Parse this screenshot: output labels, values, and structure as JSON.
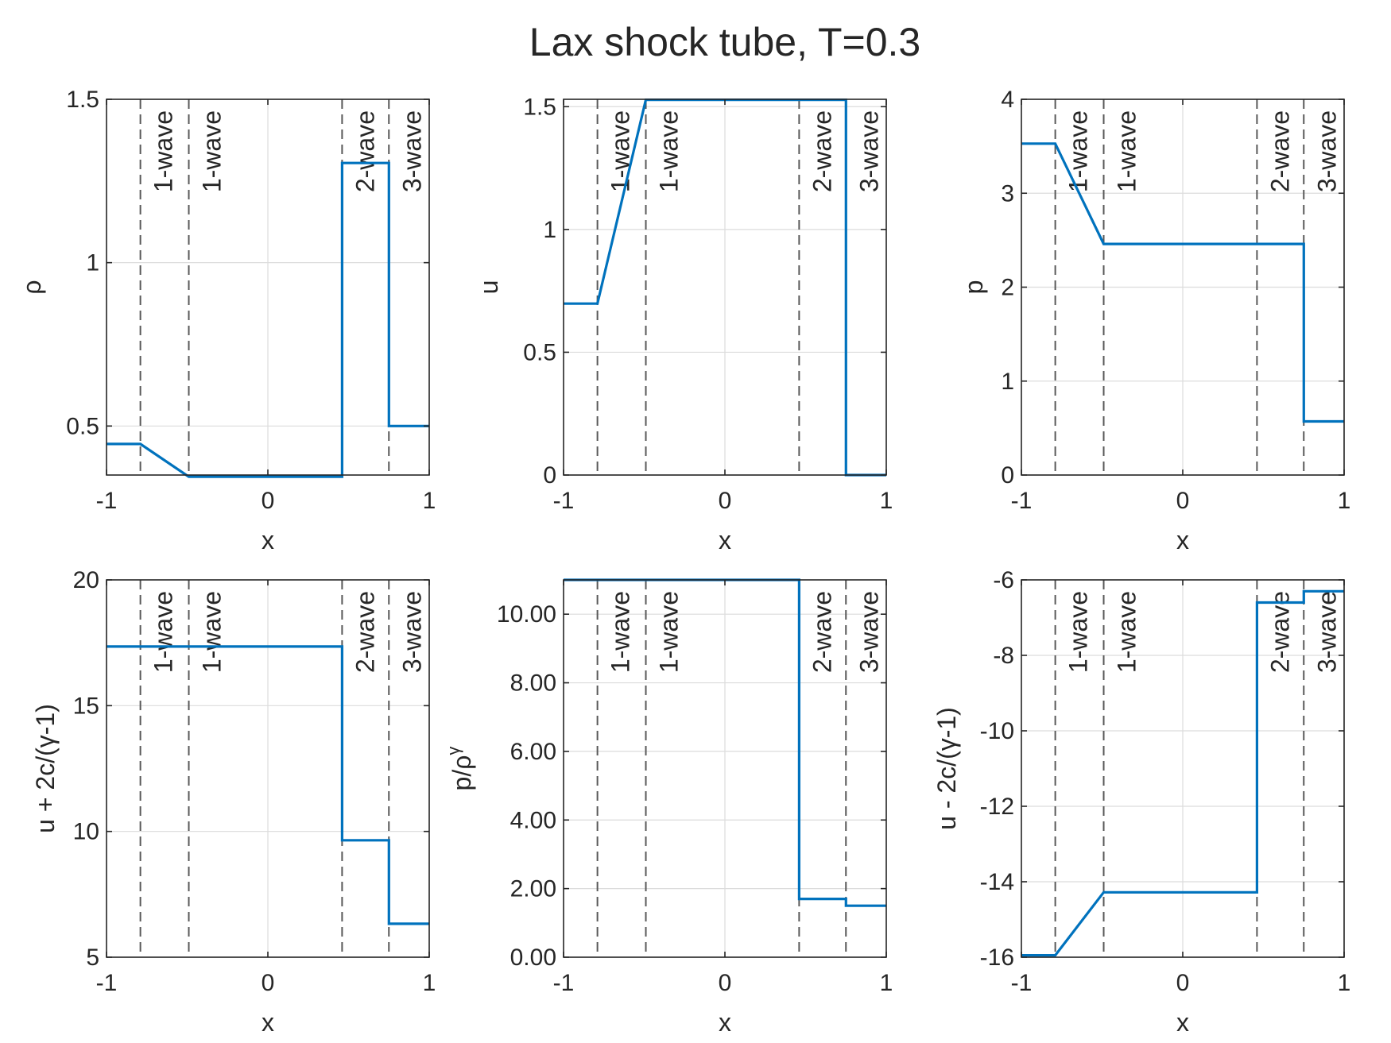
{
  "figure": {
    "title": "Lax shock tube, T=0.3"
  },
  "colors": {
    "line": "#0072BD",
    "wave_marker": "#595959",
    "grid": "#dcdcdc",
    "axes": "#262626"
  },
  "wave_positions": [
    -0.79,
    -0.49,
    0.46,
    0.75
  ],
  "wave_labels": [
    "1-wave",
    "1-wave",
    "2-wave",
    "3-wave"
  ],
  "chart_data": [
    {
      "type": "line",
      "ylabel": "ρ",
      "xlabel": "x",
      "xlim": [
        -1,
        1
      ],
      "ylim": [
        0.35,
        1.5
      ],
      "xticks": [
        -1,
        0,
        1
      ],
      "xtick_labels": [
        "-1",
        "0",
        "1"
      ],
      "yticks": [
        0.5,
        1,
        1.5
      ],
      "ytick_labels": [
        "0.5",
        "1",
        "1.5"
      ],
      "grid": true,
      "series": [
        {
          "x": [
            -1,
            -0.79,
            -0.49,
            0.46,
            0.46,
            0.75,
            0.75,
            1
          ],
          "y": [
            0.445,
            0.445,
            0.345,
            0.345,
            1.305,
            1.305,
            0.5,
            0.5
          ]
        }
      ]
    },
    {
      "type": "line",
      "ylabel": "u",
      "xlabel": "x",
      "xlim": [
        -1,
        1
      ],
      "ylim": [
        0,
        1.53
      ],
      "xticks": [
        -1,
        0,
        1
      ],
      "xtick_labels": [
        "-1",
        "0",
        "1"
      ],
      "yticks": [
        0,
        0.5,
        1,
        1.5
      ],
      "ytick_labels": [
        "0",
        "0.5",
        "1",
        "1.5"
      ],
      "grid": true,
      "series": [
        {
          "x": [
            -1,
            -0.79,
            -0.49,
            0.75,
            0.75,
            1
          ],
          "y": [
            0.698,
            0.698,
            1.528,
            1.528,
            0,
            0
          ]
        }
      ]
    },
    {
      "type": "line",
      "ylabel": "p",
      "xlabel": "x",
      "xlim": [
        -1,
        1
      ],
      "ylim": [
        0,
        4
      ],
      "xticks": [
        -1,
        0,
        1
      ],
      "xtick_labels": [
        "-1",
        "0",
        "1"
      ],
      "yticks": [
        0,
        1,
        2,
        3,
        4
      ],
      "ytick_labels": [
        "0",
        "1",
        "2",
        "3",
        "4"
      ],
      "grid": true,
      "series": [
        {
          "x": [
            -1,
            -0.79,
            -0.49,
            0.75,
            0.75,
            1
          ],
          "y": [
            3.528,
            3.528,
            2.46,
            2.46,
            0.571,
            0.571
          ]
        }
      ]
    },
    {
      "type": "line",
      "ylabel": "u + 2c/(γ-1)",
      "xlabel": "x",
      "xlim": [
        -1,
        1
      ],
      "ylim": [
        5,
        20
      ],
      "xticks": [
        -1,
        0,
        1
      ],
      "xtick_labels": [
        "-1",
        "0",
        "1"
      ],
      "yticks": [
        5,
        10,
        15,
        20
      ],
      "ytick_labels": [
        "5",
        "10",
        "15",
        "20"
      ],
      "grid": true,
      "series": [
        {
          "x": [
            -1,
            0.46,
            0.46,
            0.75,
            0.75,
            1
          ],
          "y": [
            17.35,
            17.35,
            9.65,
            9.65,
            6.33,
            6.33
          ]
        }
      ]
    },
    {
      "type": "line",
      "ylabel": "p/ρ",
      "ylabel_sup": "γ",
      "xlabel": "x",
      "xlim": [
        -1,
        1
      ],
      "ylim": [
        0,
        11
      ],
      "xticks": [
        -1,
        0,
        1
      ],
      "xtick_labels": [
        "-1",
        "0",
        "1"
      ],
      "yticks": [
        0,
        2,
        4,
        6,
        8,
        10
      ],
      "ytick_labels": [
        "0.00",
        "2.00",
        "4.00",
        "6.00",
        "8.00",
        "10.00"
      ],
      "grid": true,
      "series": [
        {
          "x": [
            -1,
            0.46,
            0.46,
            0.75,
            0.75,
            1
          ],
          "y": [
            11,
            11,
            1.7,
            1.7,
            1.5,
            1.5
          ]
        }
      ]
    },
    {
      "type": "line",
      "ylabel": "u - 2c/(γ-1)",
      "xlabel": "x",
      "xlim": [
        -1,
        1
      ],
      "ylim": [
        -16,
        -6
      ],
      "xticks": [
        -1,
        0,
        1
      ],
      "xtick_labels": [
        "-1",
        "0",
        "1"
      ],
      "yticks": [
        -16,
        -14,
        -12,
        -10,
        -8,
        -6
      ],
      "ytick_labels": [
        "-16",
        "-14",
        "-12",
        "-10",
        "-8",
        "-6"
      ],
      "grid": true,
      "series": [
        {
          "x": [
            -1,
            -0.79,
            -0.49,
            0.46,
            0.46,
            0.75,
            0.75,
            1
          ],
          "y": [
            -15.95,
            -15.95,
            -14.28,
            -14.28,
            -6.6,
            -6.6,
            -6.3,
            -6.3
          ]
        }
      ]
    }
  ]
}
